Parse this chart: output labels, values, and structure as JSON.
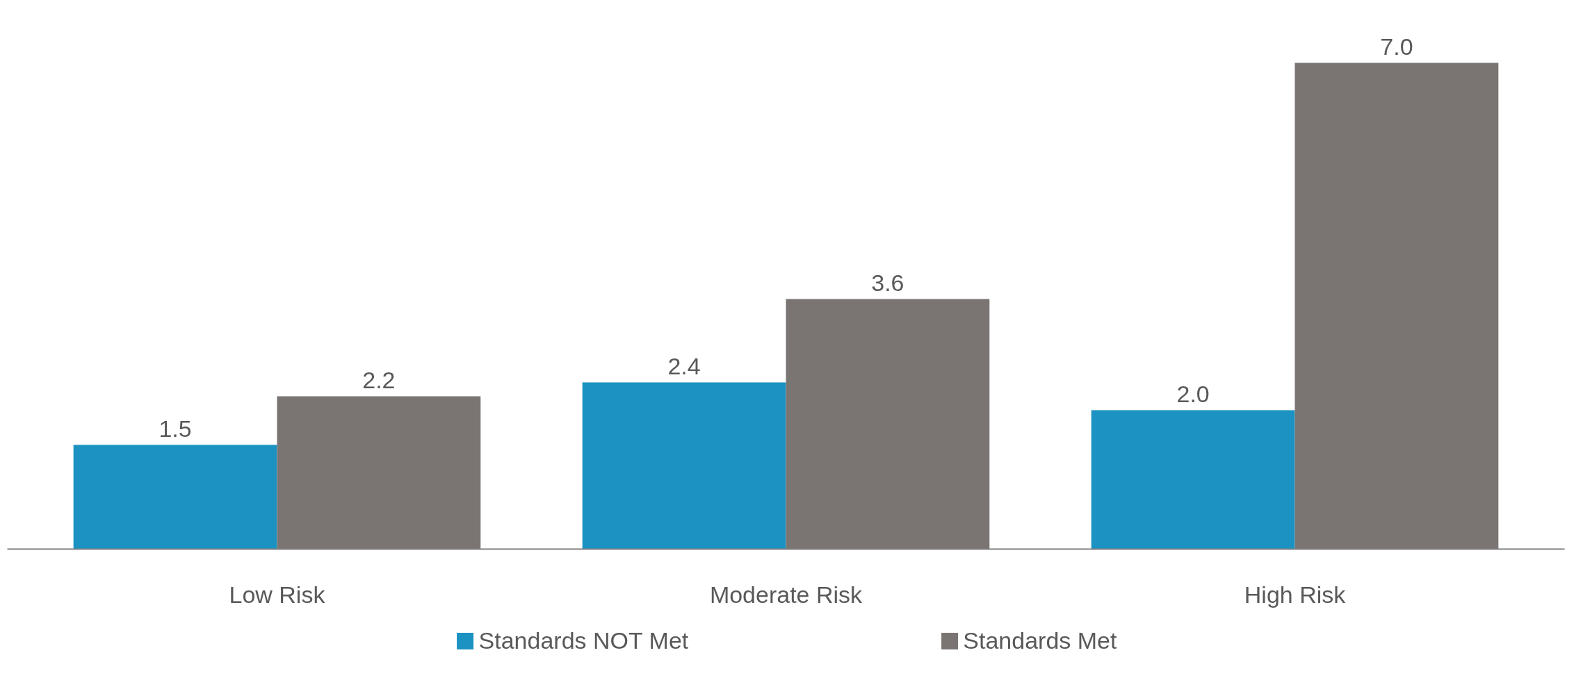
{
  "chart_data": {
    "type": "bar",
    "categories": [
      "Low Risk",
      "Moderate Risk",
      "High Risk"
    ],
    "series": [
      {
        "name": "Standards NOT Met",
        "color": "#1b92c2",
        "values": [
          1.5,
          2.4,
          2.0
        ],
        "value_labels": [
          "1.5",
          "2.4",
          "2.0"
        ]
      },
      {
        "name": "Standards Met",
        "color": "#7a7572",
        "values": [
          2.2,
          3.6,
          7.0
        ],
        "value_labels": [
          "2.2",
          "3.6",
          "7.0"
        ]
      }
    ],
    "legend": "bottom",
    "grid": false,
    "tick_labels": "x"
  }
}
